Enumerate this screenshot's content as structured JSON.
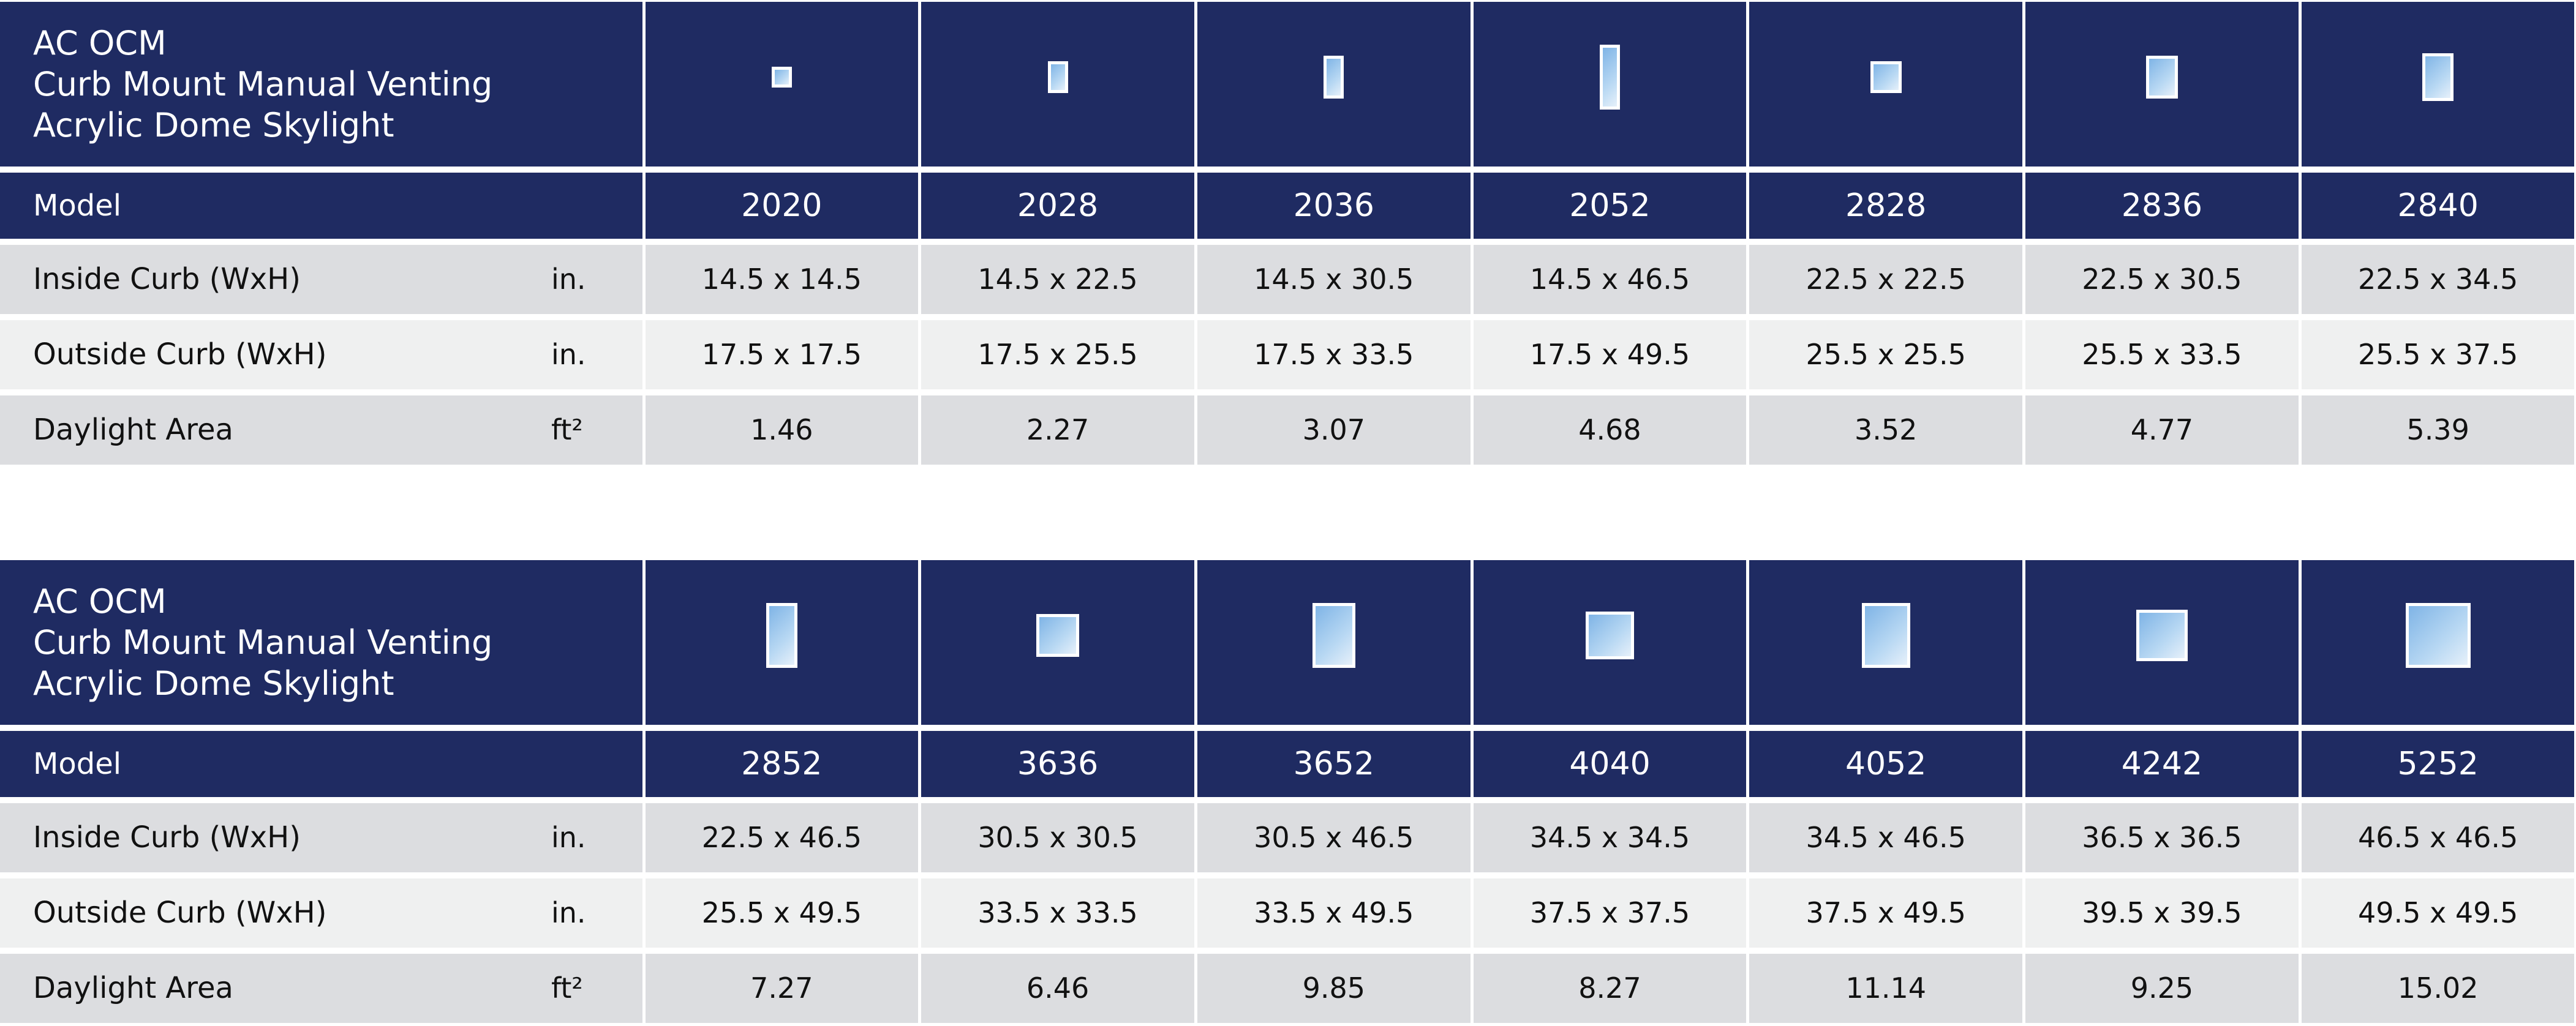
{
  "tables": [
    {
      "title": [
        "AC OCM",
        "Curb Mount Manual Venting",
        "Acrylic Dome Skylight"
      ],
      "model_label": "Model",
      "models": [
        "2020",
        "2028",
        "2036",
        "2052",
        "2828",
        "2836",
        "2840"
      ],
      "rows": [
        {
          "label": "Inside Curb (WxH)",
          "unit": "in.",
          "values": [
            "14.5 x 14.5",
            "14.5 x 22.5",
            "14.5 x 30.5",
            "14.5 x 46.5",
            "22.5 x 22.5",
            "22.5 x 30.5",
            "22.5 x 34.5"
          ]
        },
        {
          "label": "Outside Curb (WxH)",
          "unit": "in.",
          "values": [
            "17.5 x 17.5",
            "17.5 x 25.5",
            "17.5 x 33.5",
            "17.5 x 49.5",
            "25.5 x 25.5",
            "25.5 x 33.5",
            "25.5 x 37.5"
          ]
        },
        {
          "label": "Daylight Area",
          "unit": "ft²",
          "values": [
            "1.46",
            "2.27",
            "3.07",
            "4.68",
            "3.52",
            "4.77",
            "5.39"
          ]
        }
      ]
    },
    {
      "title": [
        "AC OCM",
        "Curb Mount Manual Venting",
        "Acrylic Dome Skylight"
      ],
      "model_label": "Model",
      "models": [
        "2852",
        "3636",
        "3652",
        "4040",
        "4052",
        "4242",
        "5252"
      ],
      "rows": [
        {
          "label": "Inside Curb (WxH)",
          "unit": "in.",
          "values": [
            "22.5 x 46.5",
            "30.5 x 30.5",
            "30.5 x 46.5",
            "34.5 x 34.5",
            "34.5 x 46.5",
            "36.5 x 36.5",
            "46.5 x 46.5"
          ]
        },
        {
          "label": "Outside Curb (WxH)",
          "unit": "in.",
          "values": [
            "25.5 x 49.5",
            "33.5 x 33.5",
            "33.5 x 49.5",
            "37.5 x 37.5",
            "37.5 x 49.5",
            "39.5 x 39.5",
            "49.5 x 49.5"
          ]
        },
        {
          "label": "Daylight Area",
          "unit": "ft²",
          "values": [
            "7.27",
            "6.46",
            "9.85",
            "8.27",
            "11.14",
            "9.25",
            "15.02"
          ]
        }
      ]
    }
  ]
}
